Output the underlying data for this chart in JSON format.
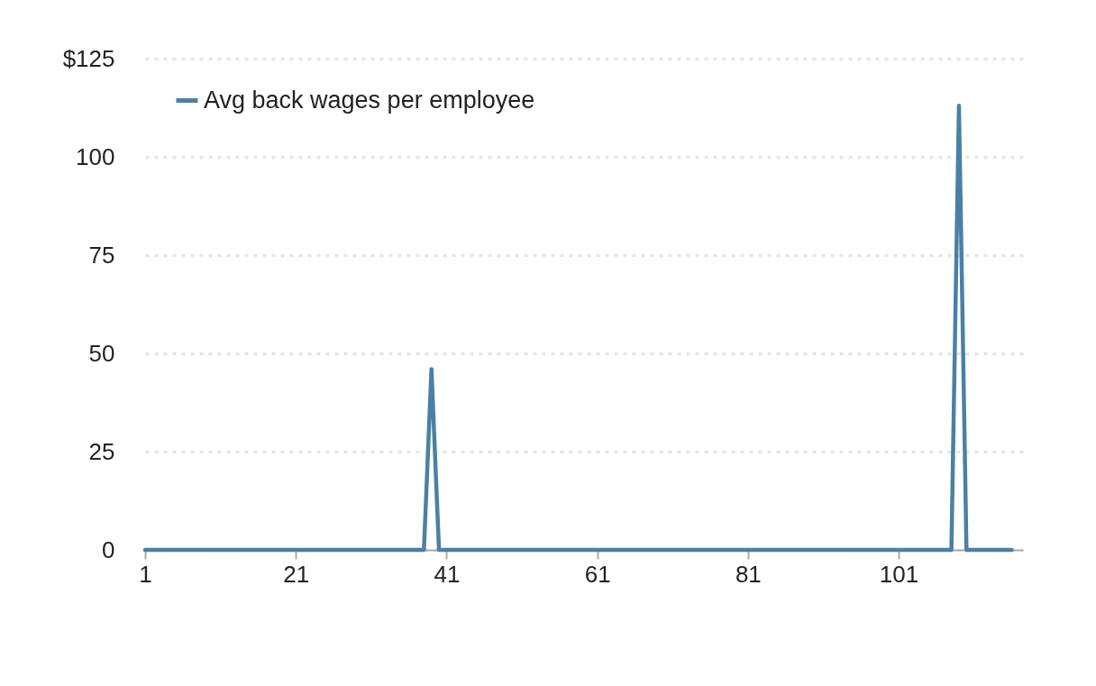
{
  "chart_data": {
    "type": "line",
    "series": [
      {
        "name": "Avg back wages per employee",
        "color": "#4b80a5",
        "x": [
          1,
          38,
          39,
          40,
          108,
          109,
          110,
          116
        ],
        "values": [
          0,
          0,
          46,
          0,
          0,
          113,
          0,
          0
        ]
      }
    ],
    "xlim": [
      1,
      117.5
    ],
    "xticks": [
      1,
      21,
      41,
      61,
      81,
      101
    ],
    "ylim": [
      0,
      125
    ],
    "yticks": [
      0,
      25,
      50,
      75,
      100,
      {
        "value": 125,
        "label": "$125"
      }
    ],
    "grid": "y",
    "legend": "top left",
    "line_style": "solid"
  }
}
